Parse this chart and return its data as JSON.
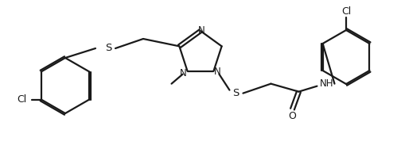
{
  "bg_color": "#ffffff",
  "line_color": "#1a1a1a",
  "line_width": 1.6,
  "figsize": [
    5.09,
    1.88
  ],
  "dpi": 100,
  "xlim": [
    0,
    509
  ],
  "ylim": [
    188,
    0
  ],
  "text_color": "#1a1a1a"
}
